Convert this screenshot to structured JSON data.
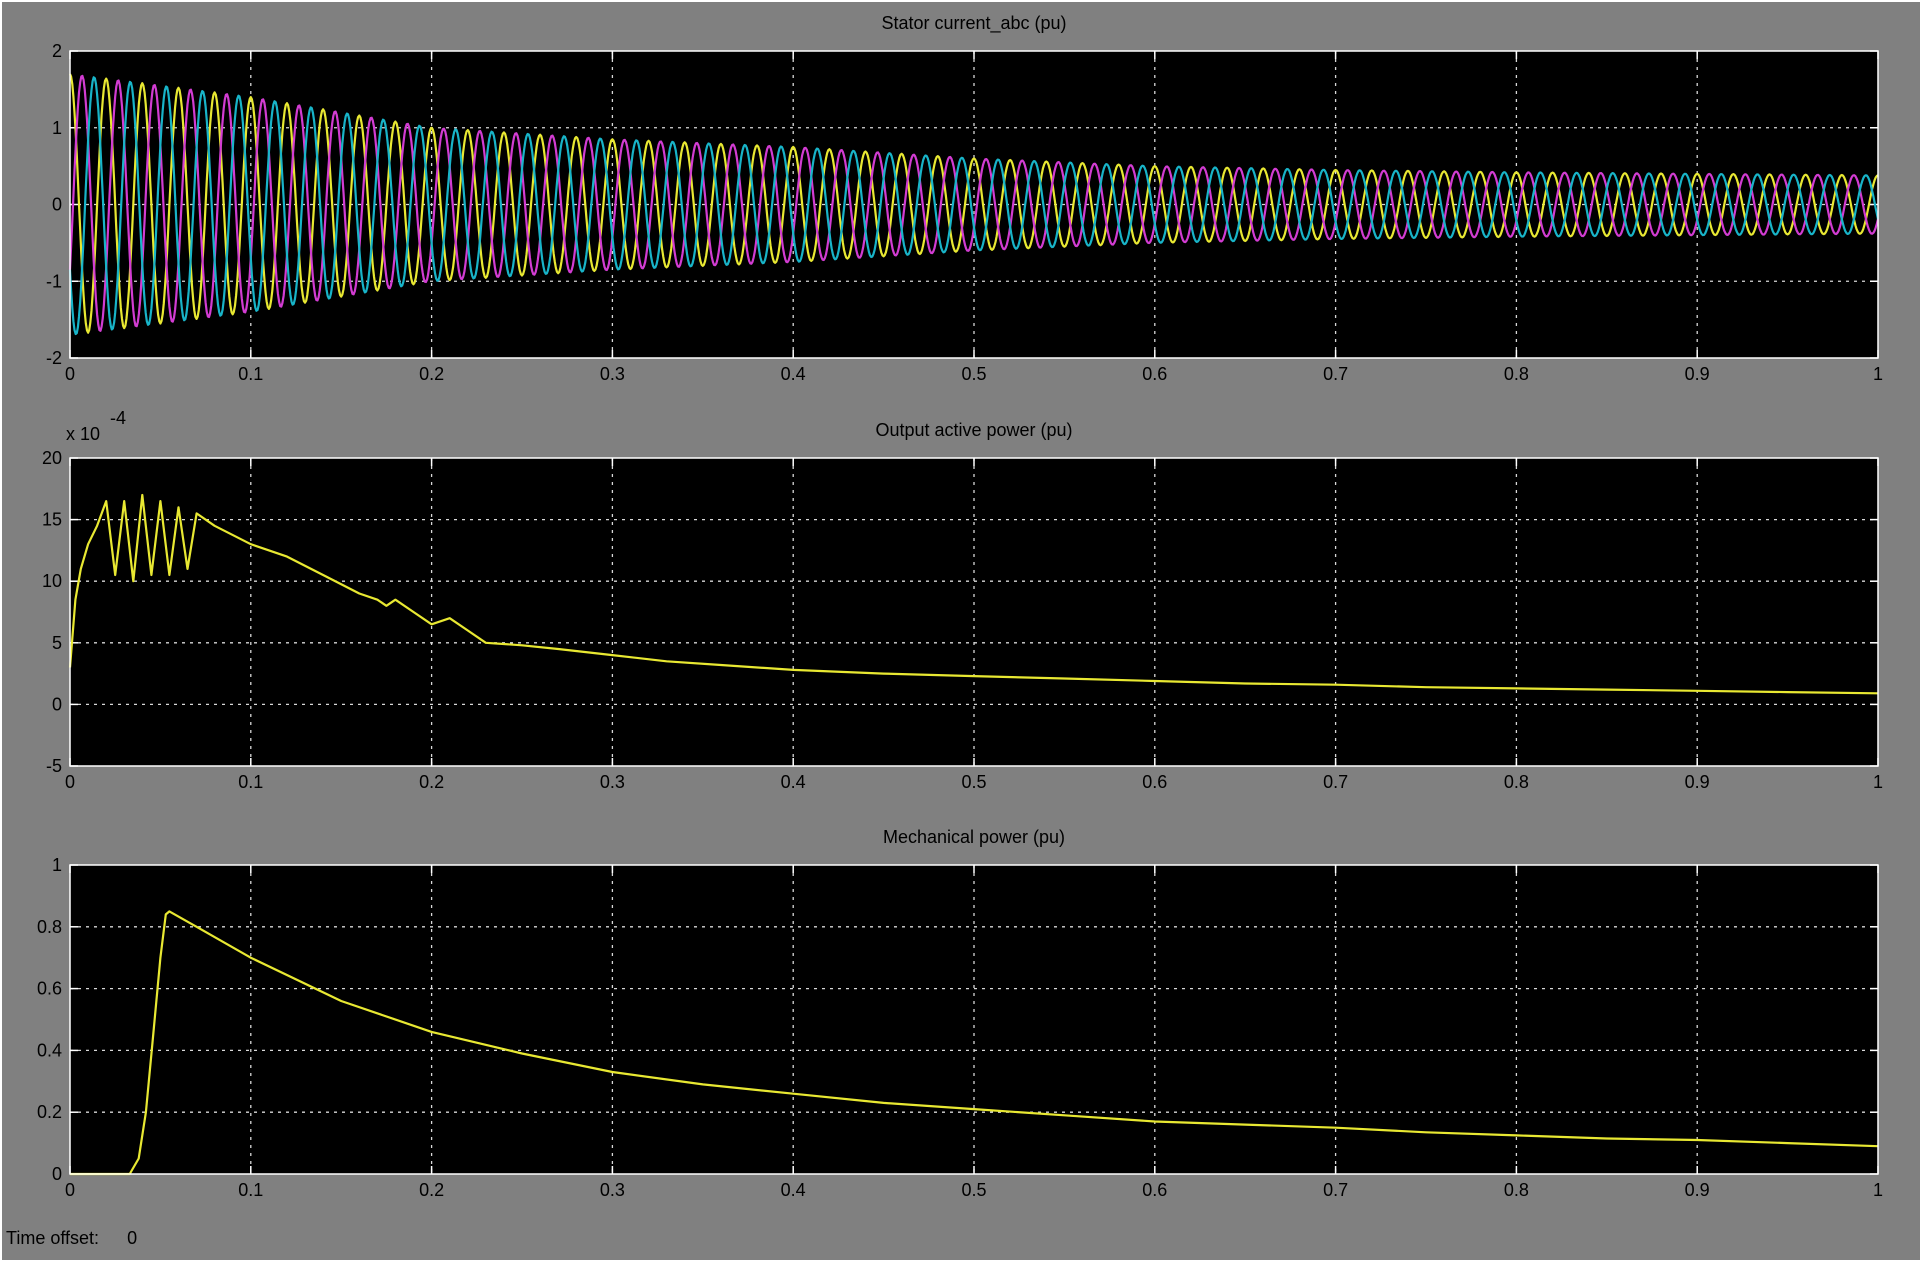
{
  "window": {
    "time_offset_label": "Time offset:",
    "time_offset_value": "0"
  },
  "colors": {
    "background": "#808080",
    "plot": "#000000",
    "grid": "#d8d8d8",
    "phase_a": "#e8e832",
    "phase_b": "#d23cd2",
    "phase_c": "#18b4c8"
  },
  "chart_data": [
    {
      "type": "line",
      "title": "Stator current_abc (pu)",
      "xlim": [
        0,
        1
      ],
      "ylim": [
        -2,
        2
      ],
      "xticks": [
        "0",
        "0.1",
        "0.2",
        "0.3",
        "0.4",
        "0.5",
        "0.6",
        "0.7",
        "0.8",
        "0.9",
        "1"
      ],
      "yticks": [
        "-2",
        "-1",
        "0",
        "1",
        "2"
      ],
      "grid": true,
      "series": [
        {
          "color": "#e8e832",
          "frequency_hz": 50,
          "phase_deg": 90,
          "envelope": {
            "t": [
              0,
              0.1,
              0.2,
              0.3,
              0.4,
              0.5,
              0.6,
              0.7,
              0.8,
              0.9,
              1.0
            ],
            "amplitude": [
              1.7,
              1.4,
              1.0,
              0.85,
              0.75,
              0.6,
              0.5,
              0.45,
              0.42,
              0.4,
              0.38
            ]
          }
        },
        {
          "color": "#d23cd2",
          "frequency_hz": 50,
          "phase_deg": -30,
          "envelope": {
            "t": [
              0,
              0.1,
              0.2,
              0.3,
              0.4,
              0.5,
              0.6,
              0.7,
              0.8,
              0.9,
              1.0
            ],
            "amplitude": [
              1.7,
              1.4,
              1.0,
              0.85,
              0.75,
              0.6,
              0.5,
              0.45,
              0.42,
              0.4,
              0.38
            ]
          }
        },
        {
          "color": "#18b4c8",
          "frequency_hz": 50,
          "phase_deg": 210,
          "envelope": {
            "t": [
              0,
              0.1,
              0.2,
              0.3,
              0.4,
              0.5,
              0.6,
              0.7,
              0.8,
              0.9,
              1.0
            ],
            "amplitude": [
              1.7,
              1.4,
              1.0,
              0.85,
              0.75,
              0.6,
              0.5,
              0.45,
              0.42,
              0.4,
              0.38
            ]
          }
        }
      ]
    },
    {
      "type": "line",
      "title": "Output active power (pu)",
      "scale_label": "x 10",
      "scale_exponent": "-4",
      "xlim": [
        0,
        1
      ],
      "ylim": [
        -5,
        20
      ],
      "xticks": [
        "0",
        "0.1",
        "0.2",
        "0.3",
        "0.4",
        "0.5",
        "0.6",
        "0.7",
        "0.8",
        "0.9",
        "1"
      ],
      "yticks": [
        "-5",
        "0",
        "5",
        "10",
        "15",
        "20"
      ],
      "grid": true,
      "series": [
        {
          "color": "#e8e832",
          "x": [
            0,
            0.003,
            0.006,
            0.01,
            0.015,
            0.02,
            0.025,
            0.03,
            0.035,
            0.04,
            0.045,
            0.05,
            0.055,
            0.06,
            0.065,
            0.07,
            0.08,
            0.1,
            0.12,
            0.14,
            0.16,
            0.17,
            0.175,
            0.18,
            0.19,
            0.2,
            0.21,
            0.22,
            0.23,
            0.25,
            0.27,
            0.3,
            0.33,
            0.36,
            0.4,
            0.45,
            0.5,
            0.55,
            0.6,
            0.65,
            0.7,
            0.75,
            0.8,
            0.85,
            0.9,
            0.95,
            1.0
          ],
          "y": [
            3,
            8.5,
            11,
            13,
            14.5,
            16.5,
            10.5,
            16.5,
            10,
            17,
            10.5,
            16.5,
            10.5,
            16,
            11,
            15.5,
            14.5,
            13,
            12,
            10.5,
            9,
            8.5,
            8,
            8.5,
            7.5,
            6.5,
            7,
            6,
            5,
            4.8,
            4.5,
            4,
            3.5,
            3.2,
            2.8,
            2.5,
            2.3,
            2.1,
            1.9,
            1.7,
            1.6,
            1.4,
            1.3,
            1.2,
            1.1,
            1.0,
            0.9
          ]
        }
      ]
    },
    {
      "type": "line",
      "title": "Mechanical power (pu)",
      "xlim": [
        0,
        1
      ],
      "ylim": [
        0,
        1
      ],
      "xticks": [
        "0",
        "0.1",
        "0.2",
        "0.3",
        "0.4",
        "0.5",
        "0.6",
        "0.7",
        "0.8",
        "0.9",
        "1"
      ],
      "yticks": [
        "0",
        "0.2",
        "0.4",
        "0.6",
        "0.8",
        "1"
      ],
      "grid": true,
      "series": [
        {
          "color": "#e8e832",
          "x": [
            0,
            0.02,
            0.033,
            0.038,
            0.042,
            0.046,
            0.05,
            0.053,
            0.055,
            0.07,
            0.1,
            0.15,
            0.2,
            0.25,
            0.3,
            0.35,
            0.4,
            0.45,
            0.5,
            0.55,
            0.6,
            0.65,
            0.7,
            0.75,
            0.8,
            0.85,
            0.9,
            0.95,
            1.0
          ],
          "y": [
            0,
            0,
            0,
            0.05,
            0.2,
            0.45,
            0.7,
            0.84,
            0.85,
            0.8,
            0.7,
            0.56,
            0.46,
            0.39,
            0.33,
            0.29,
            0.26,
            0.23,
            0.21,
            0.19,
            0.17,
            0.16,
            0.15,
            0.135,
            0.125,
            0.115,
            0.11,
            0.1,
            0.09
          ]
        }
      ]
    }
  ]
}
